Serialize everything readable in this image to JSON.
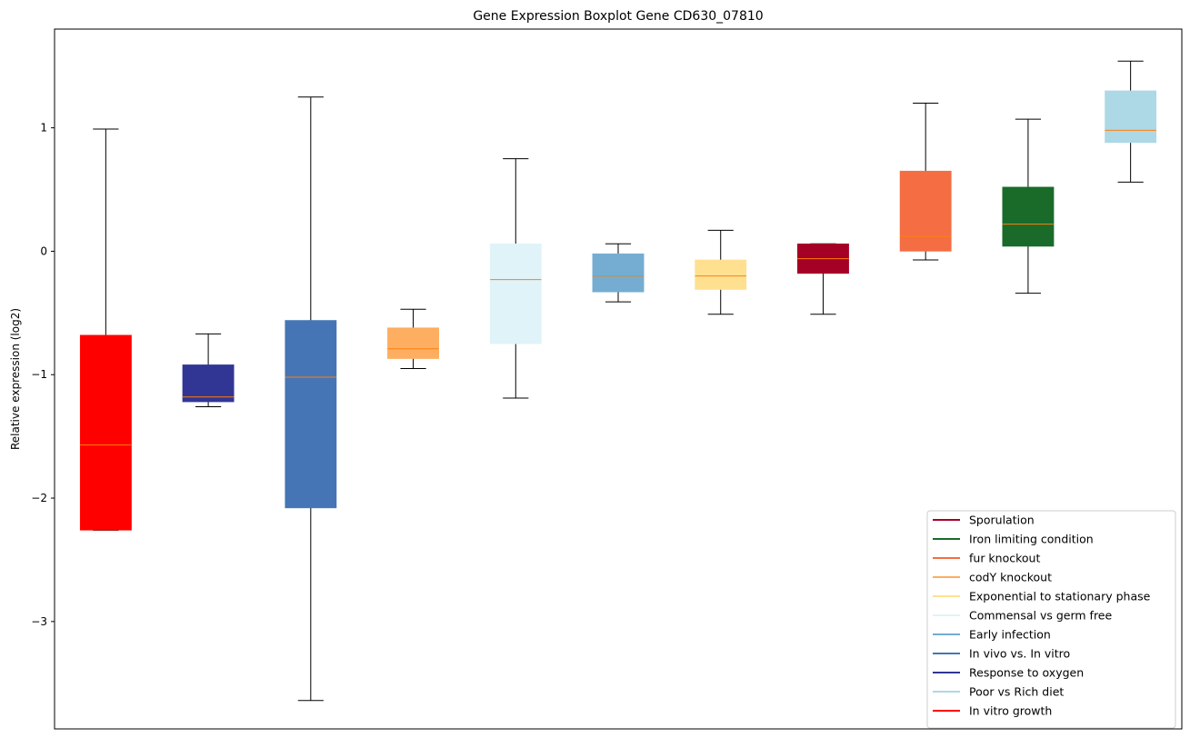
{
  "chart_data": {
    "type": "boxplot",
    "title": "Gene Expression Boxplot Gene CD630_07810",
    "xlabel": "",
    "ylabel": "Relative expression (log2)",
    "ylim": [
      -3.87,
      1.8
    ],
    "yticks": [
      1,
      0,
      -1,
      -2,
      -3
    ],
    "ytick_labels": [
      "1",
      "0",
      "−1",
      "−2",
      "−3"
    ],
    "grid": false,
    "legend_position": "lower-right",
    "median_color": "#ff7f0e",
    "boxes": [
      {
        "name": "In vitro growth",
        "color": "#ff0000",
        "whisker_low": -2.26,
        "q1": -2.26,
        "median": -1.57,
        "q3": -0.68,
        "whisker_high": 0.99
      },
      {
        "name": "Response to oxygen",
        "color": "#313695",
        "whisker_low": -1.26,
        "q1": -1.22,
        "median": -1.18,
        "q3": -0.92,
        "whisker_high": -0.67
      },
      {
        "name": "In vivo vs. In vitro",
        "color": "#4575b4",
        "whisker_low": -3.64,
        "q1": -2.08,
        "median": -1.02,
        "q3": -0.56,
        "whisker_high": 1.25
      },
      {
        "name": "codY knockout",
        "color": "#fdae61",
        "whisker_low": -0.95,
        "q1": -0.87,
        "median": -0.79,
        "q3": -0.62,
        "whisker_high": -0.47
      },
      {
        "name": "Commensal vs germ free",
        "color": "#e0f3f8",
        "whisker_low": -1.19,
        "q1": -0.75,
        "median": -0.23,
        "q3": 0.06,
        "whisker_high": 0.75
      },
      {
        "name": "Early infection",
        "color": "#74add1",
        "whisker_low": -0.41,
        "q1": -0.33,
        "median": -0.2,
        "q3": -0.02,
        "whisker_high": 0.06
      },
      {
        "name": "Exponential to stationary phase",
        "color": "#fee090",
        "whisker_low": -0.51,
        "q1": -0.31,
        "median": -0.2,
        "q3": -0.07,
        "whisker_high": 0.17
      },
      {
        "name": "Sporulation",
        "color": "#a50026",
        "whisker_low": -0.51,
        "q1": -0.18,
        "median": -0.06,
        "q3": 0.06,
        "whisker_high": 0.06
      },
      {
        "name": "fur knockout",
        "color": "#f46d43",
        "whisker_low": -0.07,
        "q1": 0.0,
        "median": 0.12,
        "q3": 0.65,
        "whisker_high": 1.2
      },
      {
        "name": "Iron limiting condition",
        "color": "#1a6b2a",
        "whisker_low": -0.34,
        "q1": 0.04,
        "median": 0.22,
        "q3": 0.52,
        "whisker_high": 1.07
      },
      {
        "name": "Poor vs Rich diet",
        "color": "#add8e6",
        "whisker_low": 0.56,
        "q1": 0.88,
        "median": 0.98,
        "q3": 1.3,
        "whisker_high": 1.54
      }
    ],
    "legend": [
      {
        "label": "Sporulation",
        "color": "#a50026"
      },
      {
        "label": "Iron limiting condition",
        "color": "#1a6b2a"
      },
      {
        "label": "fur knockout",
        "color": "#f46d43"
      },
      {
        "label": "codY knockout",
        "color": "#fdae61"
      },
      {
        "label": "Exponential to stationary phase",
        "color": "#fee090"
      },
      {
        "label": "Commensal vs germ free",
        "color": "#e0f3f8"
      },
      {
        "label": "Early infection",
        "color": "#74add1"
      },
      {
        "label": "In vivo vs. In vitro",
        "color": "#4575b4"
      },
      {
        "label": "Response to oxygen",
        "color": "#313695"
      },
      {
        "label": "Poor vs Rich diet",
        "color": "#add8e6"
      },
      {
        "label": "In vitro growth",
        "color": "#ff0000"
      }
    ]
  }
}
